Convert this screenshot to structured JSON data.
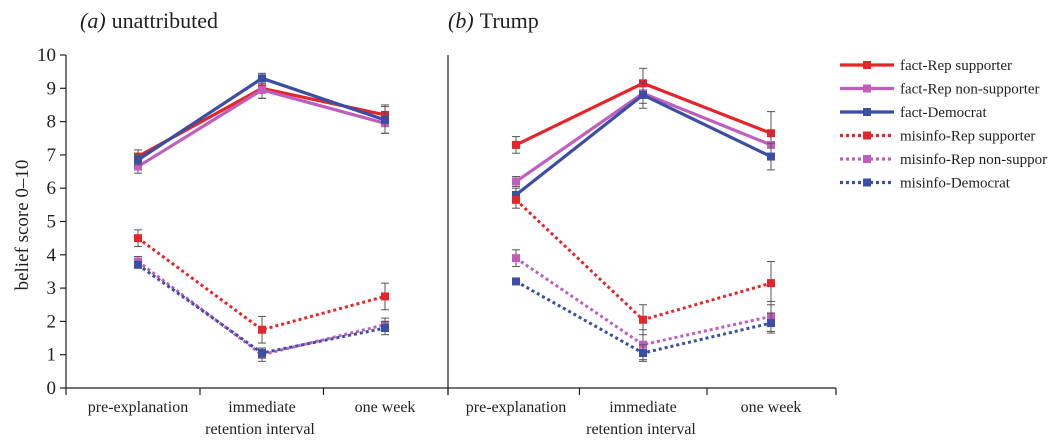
{
  "figure": {
    "ylabel": "belief score 0–10",
    "xlabel": "retention interval"
  },
  "chart_data": [
    {
      "type": "line",
      "title_prefix": "(a)",
      "title": "unattributed",
      "categories": [
        "pre-explanation",
        "immediate",
        "one week"
      ],
      "ylim": [
        0,
        10
      ],
      "yticks": [
        0,
        1,
        2,
        3,
        4,
        5,
        6,
        7,
        8,
        9,
        10
      ],
      "xlabel": "retention interval",
      "ylabel": "belief score 0–10",
      "series": [
        {
          "name": "fact-Rep supporter",
          "values": [
            6.95,
            9.0,
            8.2
          ],
          "errors": [
            0.2,
            0.3,
            0.3
          ]
        },
        {
          "name": "fact-Rep non-supporter",
          "values": [
            6.65,
            8.95,
            7.95
          ],
          "errors": [
            0.2,
            0.25,
            0.3
          ]
        },
        {
          "name": "fact-Democrat",
          "values": [
            6.85,
            9.3,
            8.05
          ],
          "errors": [
            0.15,
            0.15,
            0.4
          ]
        },
        {
          "name": "misinfo-Rep supporter",
          "values": [
            4.5,
            1.75,
            2.75
          ],
          "errors": [
            0.25,
            0.4,
            0.4
          ]
        },
        {
          "name": "misinfo-Rep non-supporter",
          "values": [
            3.8,
            1.0,
            1.9
          ],
          "errors": [
            0.15,
            0.2,
            0.2
          ]
        },
        {
          "name": "misinfo-Democrat",
          "values": [
            3.7,
            1.05,
            1.8
          ],
          "errors": [
            0.1,
            0.15,
            0.2
          ]
        }
      ]
    },
    {
      "type": "line",
      "title_prefix": "(b)",
      "title": "Trump",
      "categories": [
        "pre-explanation",
        "immediate",
        "one week"
      ],
      "ylim": [
        0,
        10
      ],
      "xlabel": "retention interval",
      "series": [
        {
          "name": "fact-Rep supporter",
          "values": [
            7.3,
            9.15,
            7.65
          ],
          "errors": [
            0.25,
            0.45,
            0.65
          ]
        },
        {
          "name": "fact-Rep non-supporter",
          "values": [
            6.2,
            8.85,
            7.3
          ],
          "errors": [
            0.15,
            0.3,
            0.4
          ]
        },
        {
          "name": "fact-Democrat",
          "values": [
            5.8,
            8.8,
            6.95
          ],
          "errors": [
            0.2,
            0.4,
            0.4
          ]
        },
        {
          "name": "misinfo-Rep supporter",
          "values": [
            5.65,
            2.05,
            3.15
          ],
          "errors": [
            0.25,
            0.45,
            0.65
          ]
        },
        {
          "name": "misinfo-Rep non-supporter",
          "values": [
            3.9,
            1.3,
            2.15
          ],
          "errors": [
            0.25,
            0.45,
            0.45
          ]
        },
        {
          "name": "misinfo-Democrat",
          "values": [
            3.2,
            1.05,
            1.95
          ],
          "errors": [
            0.1,
            0.25,
            0.3
          ]
        }
      ]
    }
  ],
  "series_styles": [
    {
      "color": "#e5252a",
      "dash": "solid"
    },
    {
      "color": "#c15dbd",
      "dash": "solid"
    },
    {
      "color": "#3b4ea6",
      "dash": "solid"
    },
    {
      "color": "#e5252a",
      "dash": "dotted"
    },
    {
      "color": "#c15dbd",
      "dash": "dotted"
    },
    {
      "color": "#3b4ea6",
      "dash": "dotted"
    }
  ],
  "errorbar_color": "#555555",
  "axis_color": "#231f20",
  "legend": {
    "position": "top-right",
    "items": [
      "fact-Rep supporter",
      "fact-Rep non-supporter",
      "fact-Democrat",
      "misinfo-Rep supporter",
      "misinfo-Rep non-supporter",
      "misinfo-Democrat"
    ]
  }
}
